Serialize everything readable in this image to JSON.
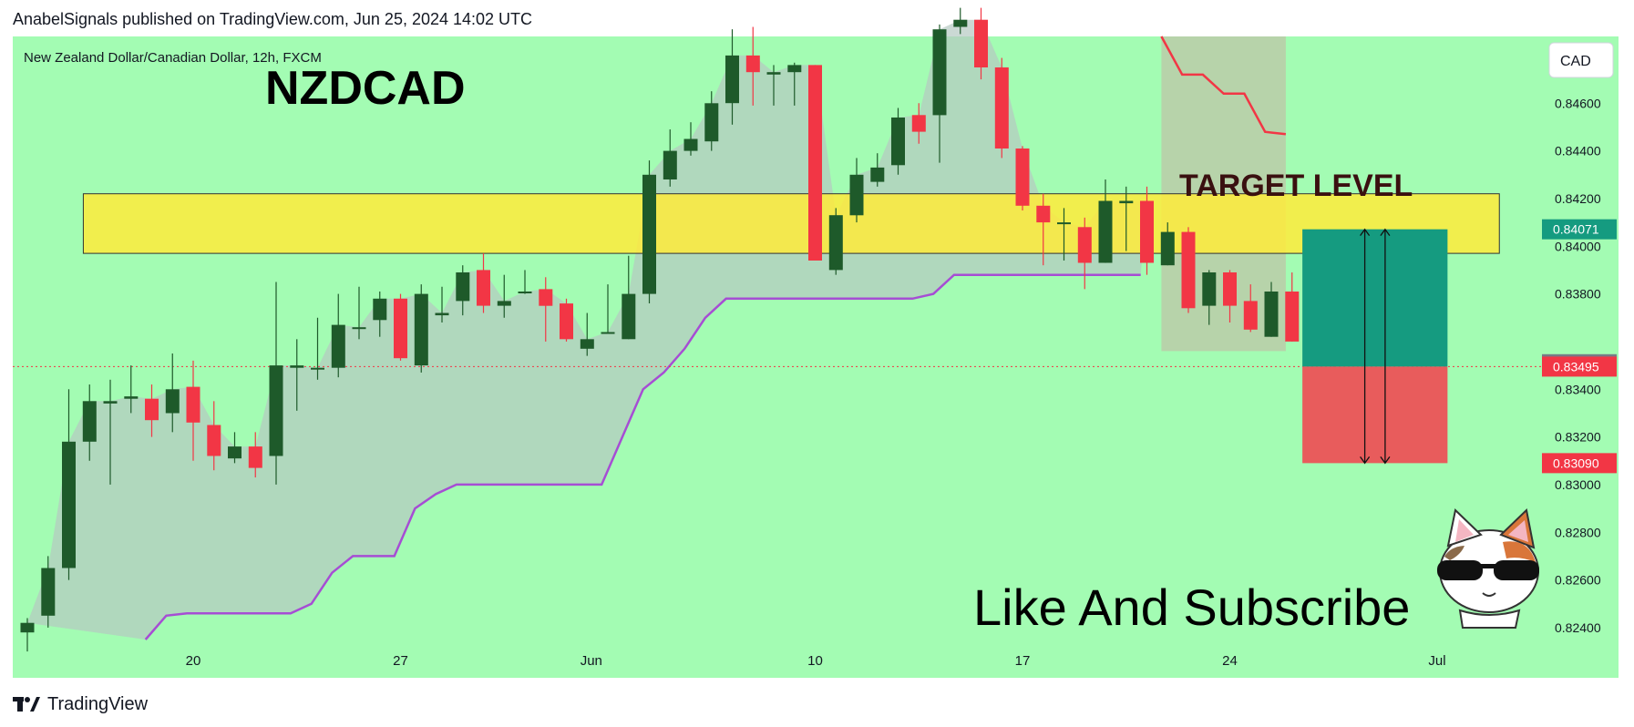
{
  "header": {
    "published_line": "AnabelSignals published on TradingView.com, Jun 25, 2024 14:02 UTC"
  },
  "footer": {
    "brand_label": "TradingView"
  },
  "chart_data": {
    "type": "candlestick",
    "symbol_line": "New Zealand Dollar/Canadian Dollar, 12h, FXCM",
    "title": "NZDCAD",
    "currency": "CAD",
    "colors": {
      "background": "#a3fcb3",
      "up_candle": "#1e5a2a",
      "down_candle": "#f23645",
      "cloud": "#b5c9c2",
      "trend_line_support": "#a64dd4",
      "trend_line_resistance": "#f23645",
      "zone": "#ffeb3b",
      "target_box": "#159b80",
      "stop_box": "#e85c5c",
      "price_label_current": "#f23645",
      "price_label_target": "#159b80",
      "price_label_stop": "#f23645",
      "price_label_gray": "#787b86"
    },
    "y_axis": {
      "ylim": [
        0.8235,
        0.8488
      ],
      "ticks": [
        "0.84600",
        "0.84400",
        "0.84200",
        "0.84000",
        "0.83800",
        "0.83400",
        "0.83200",
        "0.83000",
        "0.82800",
        "0.82600",
        "0.82400"
      ]
    },
    "x_axis": {
      "labels": [
        "20",
        "27",
        "Jun",
        "10",
        "17",
        "24",
        "Jul"
      ],
      "label_bar_index": [
        8,
        18,
        27.2,
        38,
        48,
        58,
        68
      ]
    },
    "price_labels": {
      "target": "0.84071",
      "gray": "0.83505",
      "current": "0.83495",
      "stop": "0.83090"
    },
    "annotations": {
      "target_text": "TARGET LEVEL",
      "cta_text": "Like And Subscribe"
    },
    "zone": {
      "top": 0.8422,
      "bottom": 0.8397,
      "start_bar": 2.7,
      "end_bar": 71
    },
    "position": {
      "entry": 0.83495,
      "target": 0.84071,
      "stop": 0.8309,
      "start_bar": 61.5,
      "end_bar": 68.5
    },
    "support_line": [
      [
        5.7,
        0.8235
      ],
      [
        6.7,
        0.8245
      ],
      [
        7.7,
        0.8246
      ],
      [
        12.7,
        0.8246
      ],
      [
        13.7,
        0.825
      ],
      [
        14.7,
        0.8263
      ],
      [
        15.7,
        0.827
      ],
      [
        17.7,
        0.827
      ],
      [
        18.7,
        0.829
      ],
      [
        19.7,
        0.8296
      ],
      [
        20.7,
        0.83
      ],
      [
        27.7,
        0.83
      ],
      [
        28.7,
        0.832
      ],
      [
        29.7,
        0.834
      ],
      [
        30.7,
        0.8347
      ],
      [
        31.7,
        0.8357
      ],
      [
        32.7,
        0.837
      ],
      [
        33.7,
        0.8378
      ],
      [
        34.7,
        0.8378
      ],
      [
        42.7,
        0.8378
      ],
      [
        43.7,
        0.838
      ],
      [
        44.7,
        0.8388
      ],
      [
        53.7,
        0.8388
      ]
    ],
    "resistance_line": [
      [
        54.7,
        0.8488
      ],
      [
        55.7,
        0.8472
      ],
      [
        56.7,
        0.8472
      ],
      [
        57.7,
        0.8464
      ],
      [
        58.7,
        0.8464
      ],
      [
        59.7,
        0.8448
      ],
      [
        60.7,
        0.8447
      ]
    ],
    "candles": [
      [
        0.8238,
        0.8242,
        0.8244,
        0.823
      ],
      [
        0.8245,
        0.8265,
        0.827,
        0.824
      ],
      [
        0.8265,
        0.8318,
        0.834,
        0.826
      ],
      [
        0.8318,
        0.8335,
        0.8342,
        0.831
      ],
      [
        0.8334,
        0.8335,
        0.8344,
        0.83
      ],
      [
        0.8336,
        0.8337,
        0.835,
        0.833
      ],
      [
        0.8336,
        0.8327,
        0.8342,
        0.832
      ],
      [
        0.833,
        0.834,
        0.8355,
        0.8322
      ],
      [
        0.8341,
        0.8326,
        0.8352,
        0.831
      ],
      [
        0.8325,
        0.8312,
        0.8335,
        0.8306
      ],
      [
        0.8311,
        0.8316,
        0.8322,
        0.8309
      ],
      [
        0.8316,
        0.8307,
        0.8322,
        0.8303
      ],
      [
        0.8312,
        0.835,
        0.8385,
        0.83
      ],
      [
        0.8349,
        0.835,
        0.8361,
        0.8331
      ],
      [
        0.8349,
        0.8349,
        0.837,
        0.8344
      ],
      [
        0.8349,
        0.8367,
        0.838,
        0.8345
      ],
      [
        0.8366,
        0.8366,
        0.8383,
        0.8361
      ],
      [
        0.8369,
        0.8378,
        0.8381,
        0.8362
      ],
      [
        0.8378,
        0.8353,
        0.838,
        0.8352
      ],
      [
        0.835,
        0.838,
        0.8384,
        0.8347
      ],
      [
        0.8371,
        0.8372,
        0.8383,
        0.8368
      ],
      [
        0.8377,
        0.8389,
        0.8392,
        0.8371
      ],
      [
        0.839,
        0.8375,
        0.8397,
        0.8372
      ],
      [
        0.8375,
        0.8377,
        0.8388,
        0.837
      ],
      [
        0.8381,
        0.8381,
        0.839,
        0.838
      ],
      [
        0.8382,
        0.8375,
        0.8387,
        0.836
      ],
      [
        0.8376,
        0.8361,
        0.8378,
        0.836
      ],
      [
        0.8357,
        0.8361,
        0.8372,
        0.8354
      ],
      [
        0.8364,
        0.8364,
        0.8384,
        0.8364
      ],
      [
        0.8361,
        0.838,
        0.8396,
        0.8361
      ],
      [
        0.838,
        0.843,
        0.8436,
        0.8376
      ],
      [
        0.8428,
        0.844,
        0.8449,
        0.8425
      ],
      [
        0.844,
        0.8445,
        0.8452,
        0.8438
      ],
      [
        0.8444,
        0.846,
        0.8465,
        0.844
      ],
      [
        0.846,
        0.848,
        0.8491,
        0.8451
      ],
      [
        0.848,
        0.8473,
        0.8492,
        0.8459
      ],
      [
        0.8472,
        0.8473,
        0.8476,
        0.8459
      ],
      [
        0.8473,
        0.8476,
        0.8477,
        0.8459
      ],
      [
        0.8476,
        0.8394,
        0.8476,
        0.8394
      ],
      [
        0.839,
        0.8413,
        0.8416,
        0.8388
      ],
      [
        0.8413,
        0.843,
        0.8437,
        0.841
      ],
      [
        0.8427,
        0.8433,
        0.8439,
        0.8425
      ],
      [
        0.8434,
        0.8454,
        0.8458,
        0.843
      ],
      [
        0.8455,
        0.8448,
        0.846,
        0.8443
      ],
      [
        0.8455,
        0.8491,
        0.8493,
        0.8435
      ],
      [
        0.8492,
        0.8495,
        0.85,
        0.8489
      ],
      [
        0.8495,
        0.8475,
        0.85,
        0.847
      ],
      [
        0.8475,
        0.8441,
        0.8479,
        0.8437
      ],
      [
        0.8441,
        0.8417,
        0.8442,
        0.8415
      ],
      [
        0.8417,
        0.841,
        0.8422,
        0.8392
      ],
      [
        0.841,
        0.841,
        0.8416,
        0.8394
      ],
      [
        0.8408,
        0.8393,
        0.8412,
        0.8382
      ],
      [
        0.8393,
        0.8419,
        0.8428,
        0.8393
      ],
      [
        0.8418,
        0.8419,
        0.8425,
        0.8398
      ],
      [
        0.8419,
        0.8393,
        0.8425,
        0.8388
      ],
      [
        0.8392,
        0.8406,
        0.841,
        0.8392
      ],
      [
        0.8406,
        0.8374,
        0.8408,
        0.8372
      ],
      [
        0.8375,
        0.8389,
        0.839,
        0.8367
      ],
      [
        0.8389,
        0.8375,
        0.839,
        0.8368
      ],
      [
        0.8377,
        0.8365,
        0.8384,
        0.8364
      ],
      [
        0.8362,
        0.8381,
        0.8385,
        0.8362
      ],
      [
        0.8381,
        0.836,
        0.8389,
        0.836
      ],
      [
        0.836,
        0.8362,
        0.8368,
        0.835
      ],
      [
        0.8362,
        0.835,
        0.8375,
        0.8337
      ]
    ]
  }
}
